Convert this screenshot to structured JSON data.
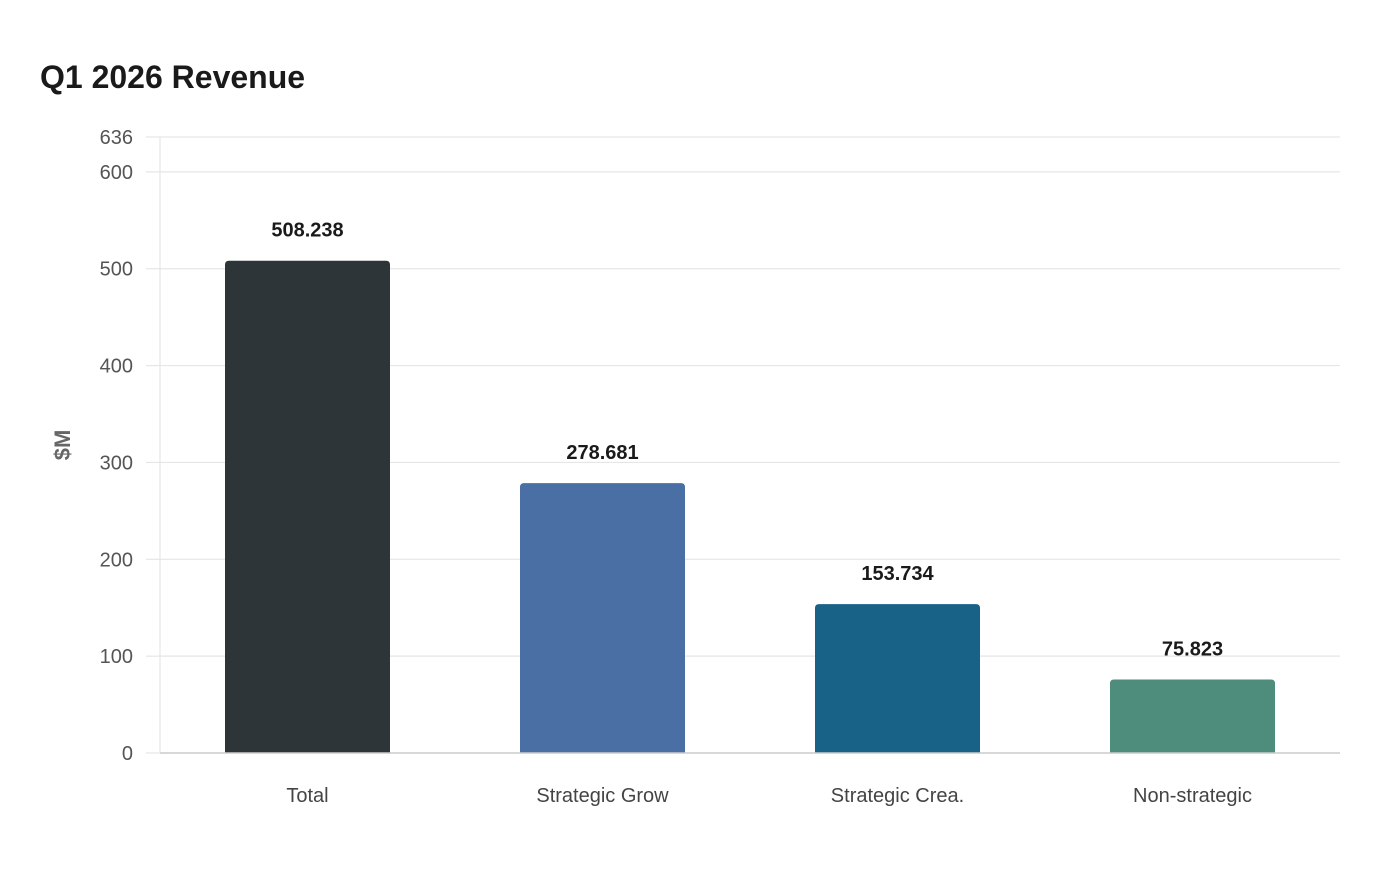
{
  "chart_data": {
    "type": "bar",
    "title": "Q1 2026 Revenue",
    "xlabel": "",
    "ylabel": "$M",
    "categories": [
      "Total",
      "Strategic Grow",
      "Strategic Crea.",
      "Non-strategic"
    ],
    "values": [
      508.238,
      278.681,
      153.734,
      75.823
    ],
    "value_labels": [
      "508.238",
      "278.681",
      "153.734",
      "75.823"
    ],
    "colors": [
      "#2e3538",
      "#4a6fa5",
      "#186187",
      "#4e8d7b"
    ],
    "ylim": [
      0,
      636
    ],
    "yticks": [
      0,
      100,
      200,
      300,
      400,
      500,
      600,
      636
    ],
    "grid": true,
    "legend": "none"
  }
}
